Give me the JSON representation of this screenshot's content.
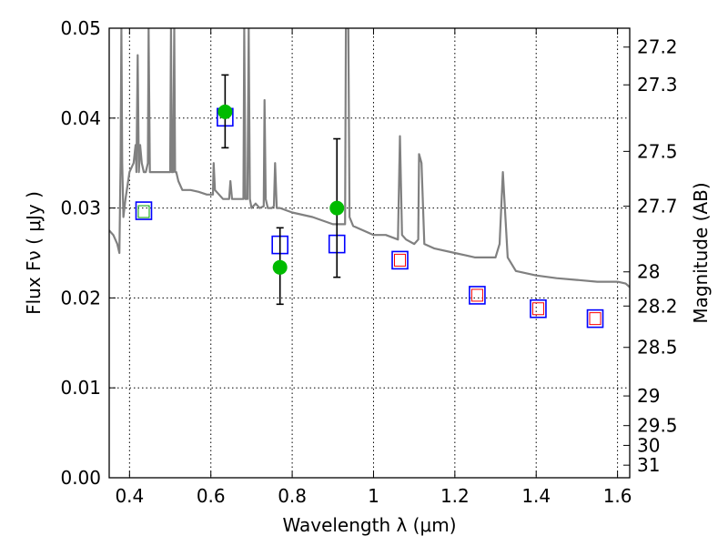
{
  "chart_data": {
    "type": "scatter",
    "title": "",
    "xlabel": "Wavelength  λ (μm)",
    "ylabel": "Flux  Fν  ( μJy )",
    "y2label": "Magnitude (AB)",
    "xlim": [
      0.35,
      1.63
    ],
    "ylim": [
      0.0,
      0.05
    ],
    "grid": true,
    "legend": "none",
    "x_ticks": [
      0.4,
      0.6,
      0.8,
      1.0,
      1.2,
      1.4,
      1.6
    ],
    "x_tick_labels": [
      "0.4",
      "0.6",
      "0.8",
      "1",
      "1.2",
      "1.4",
      "1.6"
    ],
    "y_ticks": [
      0.0,
      0.01,
      0.02,
      0.03,
      0.04,
      0.05
    ],
    "y_tick_labels": [
      "0.00",
      "0.01",
      "0.02",
      "0.03",
      "0.04",
      "0.05"
    ],
    "y2_ticks": [
      {
        "label": "27.2",
        "flux": 0.0479
      },
      {
        "label": "27.3",
        "flux": 0.0437
      },
      {
        "label": "27.5",
        "flux": 0.0363
      },
      {
        "label": "27.7",
        "flux": 0.0302
      },
      {
        "label": "28",
        "flux": 0.0229
      },
      {
        "label": "28.2",
        "flux": 0.0191
      },
      {
        "label": "28.5",
        "flux": 0.0145
      },
      {
        "label": "29",
        "flux": 0.0091
      },
      {
        "label": "29.5",
        "flux": 0.0058
      },
      {
        "label": "30",
        "flux": 0.0036
      },
      {
        "label": "31",
        "flux": 0.0014
      }
    ],
    "series": [
      {
        "kind": "line",
        "color": "#808080",
        "x": [
          0.35,
          0.36,
          0.37,
          0.375,
          0.378,
          0.38,
          0.382,
          0.385,
          0.39,
          0.4,
          0.41,
          0.415,
          0.417,
          0.42,
          0.423,
          0.426,
          0.43,
          0.435,
          0.44,
          0.445,
          0.447,
          0.45,
          0.46,
          0.47,
          0.48,
          0.49,
          0.5,
          0.502,
          0.504,
          0.507,
          0.51,
          0.512,
          0.515,
          0.52,
          0.53,
          0.55,
          0.57,
          0.59,
          0.6,
          0.605,
          0.607,
          0.61,
          0.62,
          0.63,
          0.64,
          0.645,
          0.648,
          0.652,
          0.655,
          0.66,
          0.67,
          0.68,
          0.682,
          0.685,
          0.69,
          0.693,
          0.696,
          0.7,
          0.71,
          0.72,
          0.73,
          0.732,
          0.735,
          0.74,
          0.75,
          0.755,
          0.758,
          0.762,
          0.77,
          0.8,
          0.85,
          0.9,
          0.93,
          0.932,
          0.935,
          0.938,
          0.941,
          0.95,
          1.0,
          1.03,
          1.06,
          1.065,
          1.07,
          1.08,
          1.1,
          1.11,
          1.112,
          1.118,
          1.125,
          1.15,
          1.2,
          1.25,
          1.3,
          1.31,
          1.318,
          1.33,
          1.35,
          1.4,
          1.45,
          1.5,
          1.55,
          1.6,
          1.62,
          1.63
        ],
        "y": [
          0.0275,
          0.027,
          0.026,
          0.025,
          0.035,
          0.05,
          0.035,
          0.029,
          0.031,
          0.034,
          0.035,
          0.037,
          0.034,
          0.047,
          0.034,
          0.037,
          0.035,
          0.034,
          0.034,
          0.035,
          0.05,
          0.034,
          0.034,
          0.034,
          0.034,
          0.034,
          0.034,
          0.05,
          0.034,
          0.034,
          0.05,
          0.034,
          0.034,
          0.033,
          0.032,
          0.032,
          0.0318,
          0.0315,
          0.0315,
          0.0315,
          0.035,
          0.032,
          0.0315,
          0.031,
          0.031,
          0.031,
          0.033,
          0.031,
          0.031,
          0.031,
          0.031,
          0.031,
          0.05,
          0.031,
          0.031,
          0.05,
          0.031,
          0.03,
          0.0305,
          0.03,
          0.0302,
          0.042,
          0.031,
          0.03,
          0.03,
          0.0302,
          0.035,
          0.03,
          0.03,
          0.0295,
          0.029,
          0.0282,
          0.0282,
          0.05,
          0.05,
          0.05,
          0.029,
          0.028,
          0.027,
          0.027,
          0.0265,
          0.038,
          0.027,
          0.0265,
          0.026,
          0.0265,
          0.036,
          0.035,
          0.026,
          0.0255,
          0.025,
          0.0245,
          0.0245,
          0.026,
          0.034,
          0.0245,
          0.023,
          0.0225,
          0.0222,
          0.022,
          0.0218,
          0.0218,
          0.0216,
          0.0212
        ]
      },
      {
        "kind": "open-square",
        "color": "#0000ff",
        "x": [
          0.435,
          0.635,
          0.77,
          0.91,
          1.065,
          1.255,
          1.405,
          1.545
        ],
        "y": [
          0.0297,
          0.0401,
          0.0259,
          0.026,
          0.0242,
          0.0203,
          0.0188,
          0.0177
        ]
      },
      {
        "kind": "small-open-square",
        "color": "#00a000",
        "x": [
          0.435
        ],
        "y": [
          0.0296
        ]
      },
      {
        "kind": "small-open-square",
        "color": "#ff0000",
        "x": [
          1.065,
          1.255,
          1.405,
          1.545
        ],
        "y": [
          0.0242,
          0.0203,
          0.0188,
          0.0177
        ]
      },
      {
        "kind": "filled-circle-with-errorbars",
        "color": "#00bb00",
        "x": [
          0.635,
          0.77,
          0.91
        ],
        "y": [
          0.0407,
          0.0234,
          0.03
        ],
        "y_low": [
          0.0367,
          0.0193,
          0.0223
        ],
        "y_high": [
          0.0448,
          0.0278,
          0.0377
        ]
      }
    ]
  }
}
